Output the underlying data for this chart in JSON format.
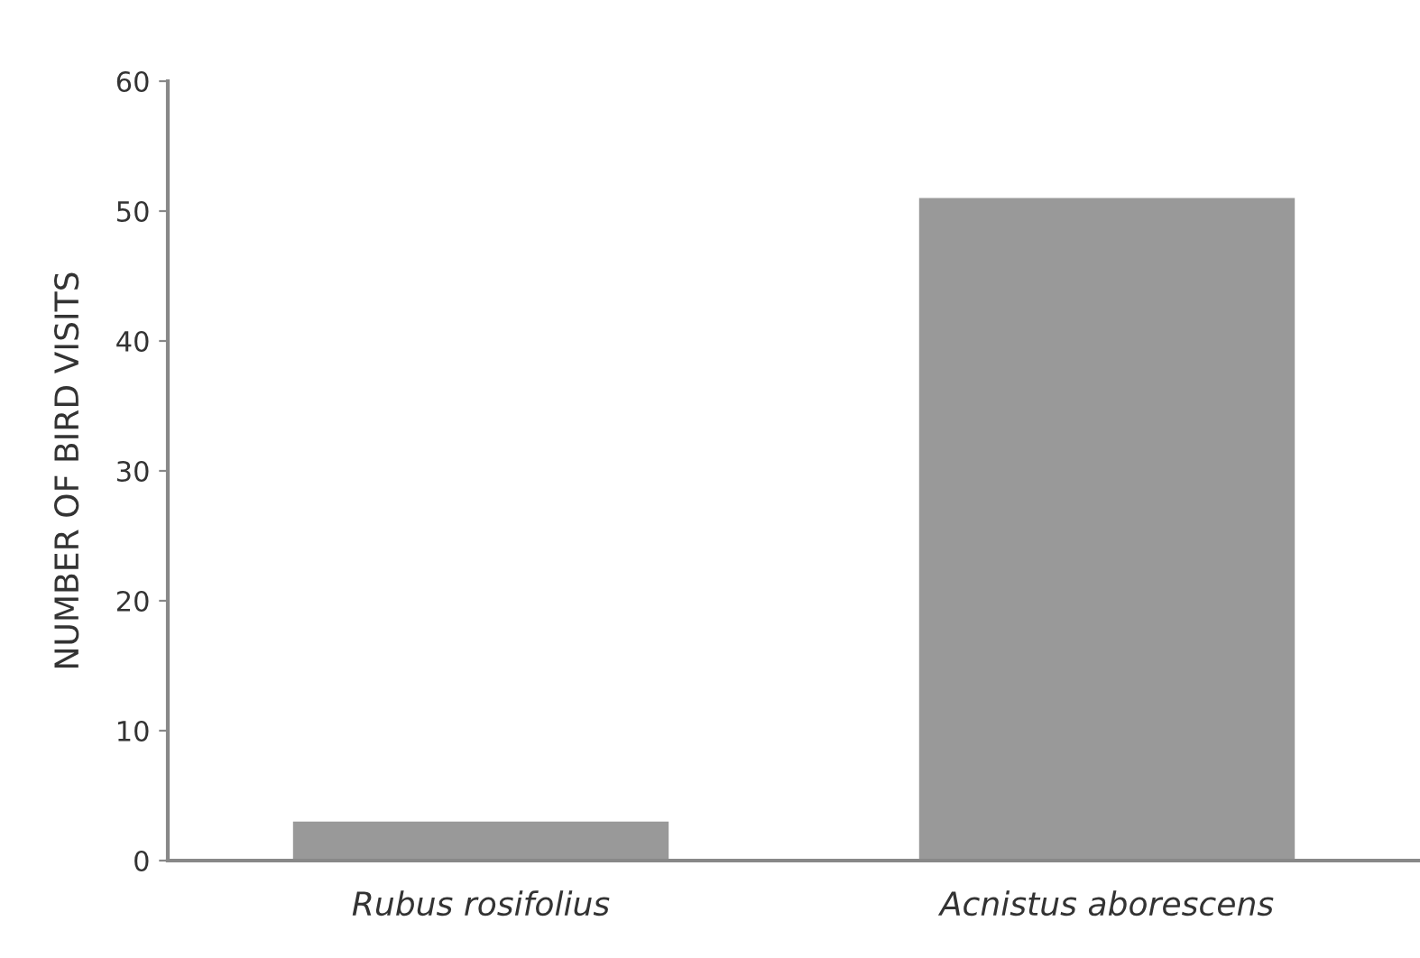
{
  "chart_data": {
    "type": "bar",
    "ylabel": "NUMBER OF BIRD VISITS",
    "categories": [
      "Rubus rosifolius",
      "Acnistus aborescens"
    ],
    "values": [
      3,
      51
    ],
    "color": "#999999",
    "ylim": [
      0,
      60
    ],
    "yticks": [
      0,
      10,
      20,
      30,
      40,
      50,
      60
    ],
    "grid": false
  }
}
